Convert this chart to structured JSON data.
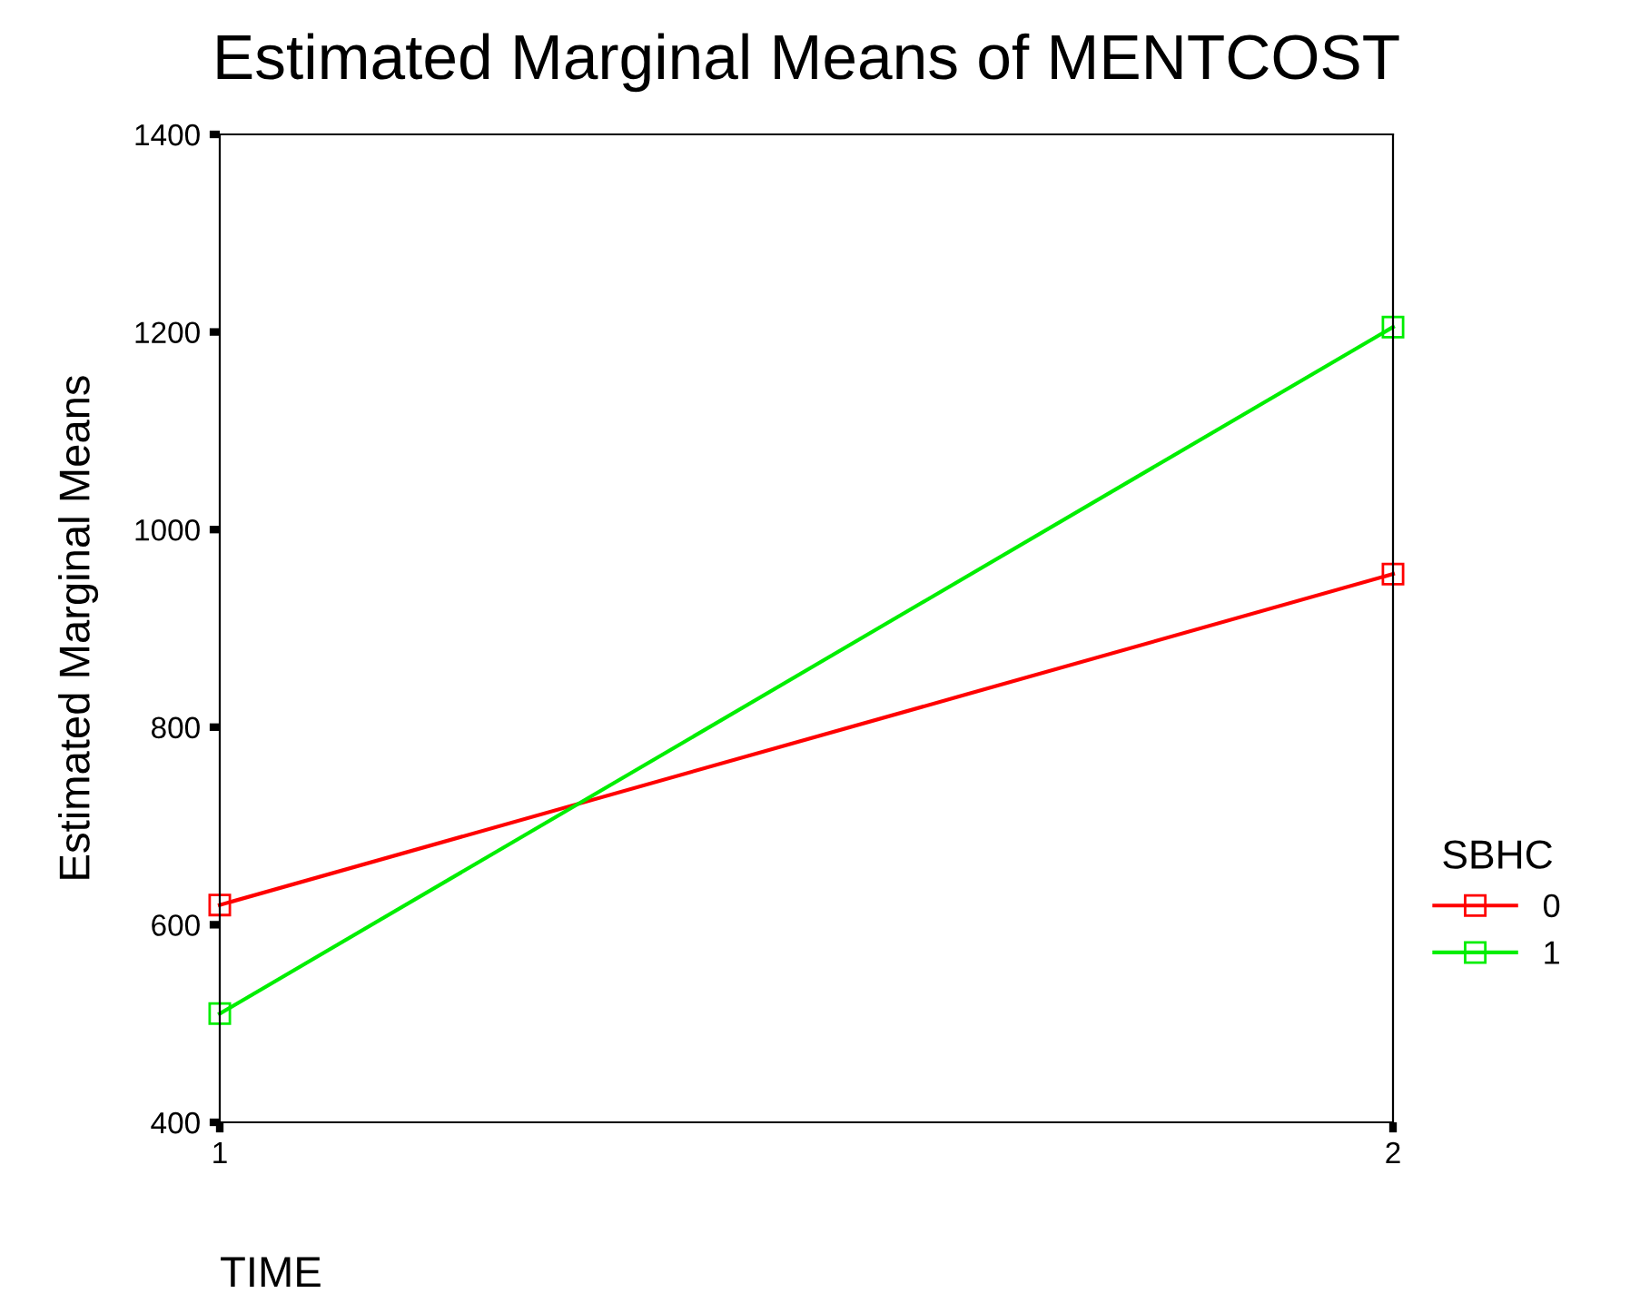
{
  "chart_data": {
    "type": "line",
    "title": "Estimated Marginal Means of MENTCOST",
    "xlabel": "TIME",
    "ylabel": "Estimated Marginal Means",
    "x": [
      1,
      2
    ],
    "xlim": [
      1,
      2
    ],
    "xticks": [
      1,
      2
    ],
    "ylim": [
      400,
      1400
    ],
    "yticks": [
      400,
      600,
      800,
      1000,
      1200,
      1400
    ],
    "legend_title": "SBHC",
    "legend": "right",
    "marker": "square",
    "grid": false,
    "series": [
      {
        "name": "0",
        "color": "#ff0000",
        "values": [
          620,
          955
        ]
      },
      {
        "name": "1",
        "color": "#00ee00",
        "values": [
          510,
          1205
        ]
      }
    ]
  }
}
